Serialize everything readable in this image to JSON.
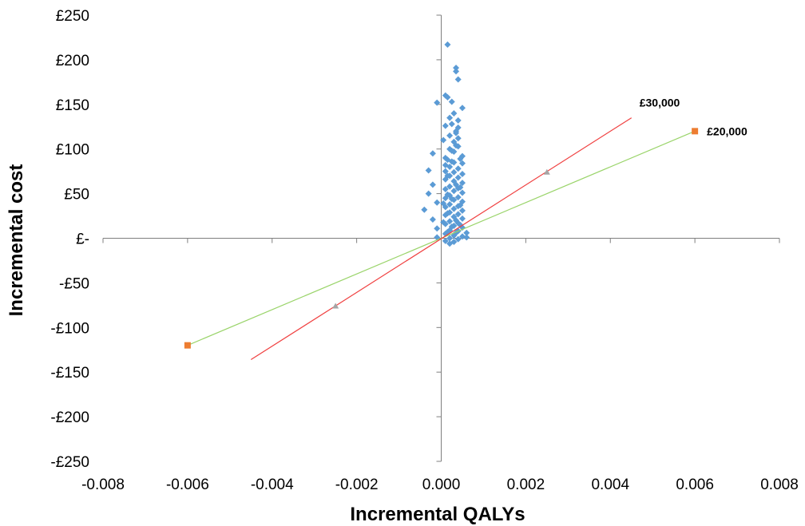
{
  "chart_data": {
    "type": "scatter",
    "xlabel": "Incremental QALYs",
    "ylabel": "Incremental cost",
    "xlim": [
      -0.008,
      0.008
    ],
    "ylim": [
      -250,
      250
    ],
    "x_ticks": [
      -0.008,
      -0.006,
      -0.004,
      -0.002,
      0.0,
      0.002,
      0.004,
      0.006,
      0.008
    ],
    "x_tick_labels": [
      "-0.008",
      "-0.006",
      "-0.004",
      "-0.002",
      "0.000",
      "0.002",
      "0.004",
      "0.006",
      "0.008"
    ],
    "y_ticks": [
      250,
      200,
      150,
      100,
      50,
      0,
      -50,
      -100,
      -150,
      -200,
      -250
    ],
    "y_tick_labels": [
      "£250",
      "£200",
      "£150",
      "£100",
      "£50",
      "£-",
      "-£50",
      "-£100",
      "-£150",
      "-£200",
      "-£250"
    ],
    "grid": false,
    "legend": "none",
    "colors": {
      "scatter": "#5b9bd5",
      "line_30000": "#f04040",
      "line_20000": "#9ad46a",
      "marker_20000": "#ed7d31",
      "marker_30000": "#a5a5a5"
    },
    "series": [
      {
        "type": "scatter",
        "marker": "diamond",
        "points": [
          [
            0.00015,
            217
          ],
          [
            0.00035,
            191
          ],
          [
            0.00035,
            187
          ],
          [
            0.0004,
            178
          ],
          [
            0.0001,
            160
          ],
          [
            0.00015,
            158
          ],
          [
            0.00025,
            153
          ],
          [
            -0.0001,
            152
          ],
          [
            0.0005,
            146
          ],
          [
            0.0003,
            140
          ],
          [
            0.0002,
            135
          ],
          [
            0.0004,
            132
          ],
          [
            0.00025,
            128
          ],
          [
            0.0001,
            126
          ],
          [
            0.0004,
            124
          ],
          [
            0.00035,
            118
          ],
          [
            0.0002,
            115
          ],
          [
            0.0004,
            112
          ],
          [
            5e-05,
            110
          ],
          [
            0.0003,
            108
          ],
          [
            0.0004,
            103
          ],
          [
            0.0002,
            100
          ],
          [
            0.0003,
            97
          ],
          [
            -0.0002,
            95
          ],
          [
            0.0005,
            92
          ],
          [
            0.0001,
            90
          ],
          [
            0.00015,
            88
          ],
          [
            0.0003,
            85
          ],
          [
            0.0005,
            84
          ],
          [
            0.0001,
            82
          ],
          [
            0.0002,
            80
          ],
          [
            0.0004,
            78
          ],
          [
            -0.0003,
            76
          ],
          [
            0.0001,
            75
          ],
          [
            0.0003,
            74
          ],
          [
            0.0005,
            72
          ],
          [
            0.0002,
            70
          ],
          [
            0.0004,
            68
          ],
          [
            0.0001,
            66
          ],
          [
            0.0003,
            64
          ],
          [
            0.0005,
            62
          ],
          [
            -0.0002,
            60
          ],
          [
            0.0002,
            58
          ],
          [
            0.0004,
            56
          ],
          [
            0.0001,
            55
          ],
          [
            0.0003,
            53
          ],
          [
            0.0005,
            51
          ],
          [
            -0.0003,
            50
          ],
          [
            0.0002,
            48
          ],
          [
            0.0004,
            46
          ],
          [
            0.0001,
            45
          ],
          [
            0.0003,
            43
          ],
          [
            0.0005,
            41
          ],
          [
            -0.0001,
            40
          ],
          [
            0.0002,
            38
          ],
          [
            0.0004,
            36
          ],
          [
            0.0001,
            35
          ],
          [
            0.0003,
            33
          ],
          [
            0.0005,
            31
          ],
          [
            -0.0004,
            32
          ],
          [
            0.0002,
            29
          ],
          [
            0.0004,
            27
          ],
          [
            0.0001,
            26
          ],
          [
            0.0003,
            24
          ],
          [
            0.0005,
            22
          ],
          [
            -0.0002,
            21
          ],
          [
            0.0002,
            19
          ],
          [
            0.0004,
            17
          ],
          [
            0.0001,
            16
          ],
          [
            0.0003,
            14
          ],
          [
            0.0005,
            12
          ],
          [
            -0.0001,
            11
          ],
          [
            0.0002,
            9
          ],
          [
            0.0004,
            8
          ],
          [
            0.0006,
            6
          ],
          [
            0.0001,
            5
          ],
          [
            0.0003,
            3
          ],
          [
            0.0005,
            2
          ],
          [
            -0.0001,
            1
          ],
          [
            0.0002,
            0
          ],
          [
            0.0004,
            -1
          ],
          [
            0.0006,
            1
          ],
          [
            0.0001,
            -3
          ],
          [
            0.0003,
            -4
          ],
          [
            0.0002,
            -6
          ],
          [
            0.00035,
            120
          ],
          [
            0.00025,
            98
          ],
          [
            0.00015,
            70
          ],
          [
            0.00035,
            60
          ],
          [
            0.00025,
            44
          ],
          [
            0.00015,
            28
          ],
          [
            0.00035,
            20
          ],
          [
            0.00045,
            37
          ],
          [
            0.00045,
            57
          ],
          [
            0.00015,
            49
          ],
          [
            0.00025,
            13
          ],
          [
            0.00035,
            6
          ],
          [
            0.00045,
            15
          ],
          [
            0.00015,
            7
          ],
          [
            5e-05,
            18
          ],
          [
            0.00025,
            86
          ],
          [
            0.00035,
            104
          ],
          [
            0.00045,
            89
          ],
          [
            5e-05,
            39
          ]
        ]
      },
      {
        "name": "£30,000",
        "type": "line",
        "points": [
          [
            -0.0045,
            -136
          ],
          [
            0.0045,
            135
          ]
        ],
        "markers": [
          [
            -0.0025,
            -76
          ],
          [
            0.0025,
            74
          ]
        ]
      },
      {
        "name": "£20,000",
        "type": "line",
        "points": [
          [
            -0.006,
            -120
          ],
          [
            0.006,
            120
          ]
        ],
        "markers": [
          [
            -0.006,
            -120
          ],
          [
            0.006,
            120
          ]
        ]
      }
    ]
  }
}
